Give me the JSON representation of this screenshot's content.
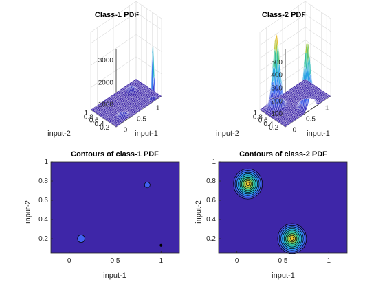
{
  "chart_data": [
    {
      "type": "surface",
      "title": "Class-1 PDF",
      "xlabel": "input-1",
      "ylabel": "input-2",
      "xlim": [
        -0.2,
        1.2
      ],
      "ylim": [
        0.05,
        1
      ],
      "zlim": [
        0,
        3500
      ],
      "xticks": [
        "0",
        "0.5",
        "1"
      ],
      "yticks": [
        "0.2",
        "0.4",
        "0.6",
        "0.8",
        "1"
      ],
      "zticks": [
        "1000",
        "2000",
        "3000"
      ],
      "peaks": [
        {
          "x": 1.0,
          "y": 0.13,
          "sigma": 0.025,
          "peak": 3100
        },
        {
          "x": 0.85,
          "y": 0.76,
          "sigma": 0.06,
          "peak": 420
        },
        {
          "x": 0.13,
          "y": 0.2,
          "sigma": 0.07,
          "peak": 380
        }
      ]
    },
    {
      "type": "surface",
      "title": "Class-2 PDF",
      "xlabel": "input-1",
      "ylabel": "input-2",
      "xlim": [
        -0.2,
        1.2
      ],
      "ylim": [
        0.05,
        1
      ],
      "zlim": [
        0,
        600
      ],
      "xticks": [
        "0",
        "0.5",
        "1"
      ],
      "yticks": [
        "0.2",
        "0.4",
        "0.6",
        "0.8",
        "1"
      ],
      "zticks": [
        "100",
        "200",
        "300",
        "400",
        "500"
      ],
      "peaks": [
        {
          "x": 0.12,
          "y": 0.77,
          "sigma": 0.085,
          "peak": 570
        },
        {
          "x": 0.6,
          "y": 0.2,
          "sigma": 0.085,
          "peak": 510
        }
      ]
    },
    {
      "type": "contour",
      "title": "Contours of class-1 PDF",
      "xlabel": "input-1",
      "ylabel": "input-2",
      "xlim": [
        -0.2,
        1.2
      ],
      "ylim": [
        0.05,
        1
      ],
      "xticks": [
        "0",
        "0.5",
        "1"
      ],
      "yticks": [
        "0.2",
        "0.4",
        "0.6",
        "0.8",
        "1"
      ],
      "peaks": [
        {
          "x": 1.0,
          "y": 0.13,
          "sigma": 0.012,
          "peak": 3100
        },
        {
          "x": 0.85,
          "y": 0.76,
          "sigma": 0.03,
          "peak": 420
        },
        {
          "x": 0.13,
          "y": 0.2,
          "sigma": 0.04,
          "peak": 380
        }
      ]
    },
    {
      "type": "contour",
      "title": "Contours of class-2 PDF",
      "xlabel": "input-1",
      "ylabel": "input-2",
      "xlim": [
        -0.2,
        1.2
      ],
      "ylim": [
        0.05,
        1
      ],
      "xticks": [
        "0",
        "0.5",
        "1"
      ],
      "yticks": [
        "0.2",
        "0.4",
        "0.6",
        "0.8",
        "1"
      ],
      "peaks": [
        {
          "x": 0.12,
          "y": 0.77,
          "sigma": 0.085,
          "peak": 570
        },
        {
          "x": 0.6,
          "y": 0.2,
          "sigma": 0.085,
          "peak": 510
        }
      ]
    }
  ],
  "colors": {
    "background": "#ffffff",
    "low": "#3e26a8",
    "mid": "#25b0c0",
    "high": "#f9fb15",
    "contour_line": "#000000"
  }
}
